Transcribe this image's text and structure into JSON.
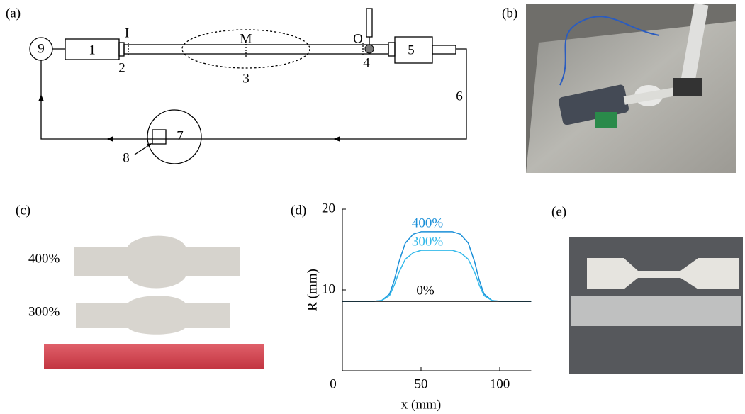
{
  "panel_labels": [
    "(a)",
    "(b)",
    "(c)",
    "(d)",
    "(e)"
  ],
  "schematic": {
    "labels": [
      "1",
      "2",
      "3",
      "4",
      "5",
      "6",
      "7",
      "8",
      "9",
      "I",
      "M",
      "O"
    ]
  },
  "photo_c": {
    "labels": [
      "400%",
      "300%"
    ]
  },
  "chart_data": {
    "type": "line",
    "x_label": "x (mm)",
    "y_label": "R (mm)",
    "x": [
      0,
      20,
      25,
      30,
      33,
      36,
      40,
      45,
      50,
      60,
      70,
      75,
      80,
      84,
      87,
      90,
      95,
      100,
      120
    ],
    "series": [
      {
        "name": "400%",
        "color": "#1a8fd8",
        "values": [
          8.6,
          8.6,
          8.7,
          9.5,
          11.2,
          13.5,
          15.8,
          16.9,
          17.2,
          17.2,
          17.2,
          16.9,
          15.8,
          13.5,
          11.2,
          9.5,
          8.7,
          8.6,
          8.6
        ]
      },
      {
        "name": "300%",
        "color": "#33b9ea",
        "values": [
          8.6,
          8.6,
          8.7,
          9.3,
          10.6,
          12.2,
          13.8,
          14.6,
          14.9,
          14.9,
          14.9,
          14.6,
          13.8,
          12.2,
          10.6,
          9.3,
          8.7,
          8.6,
          8.6
        ]
      },
      {
        "name": "0%",
        "color": "#000000",
        "values": [
          8.6,
          8.6,
          8.6,
          8.6,
          8.6,
          8.6,
          8.6,
          8.6,
          8.6,
          8.6,
          8.6,
          8.6,
          8.6,
          8.6,
          8.6,
          8.6,
          8.6,
          8.6,
          8.6
        ]
      }
    ],
    "xlim": [
      0,
      120
    ],
    "ylim": [
      0,
      20
    ],
    "xticks": [
      0,
      50,
      100
    ],
    "yticks": [
      10,
      20
    ]
  }
}
